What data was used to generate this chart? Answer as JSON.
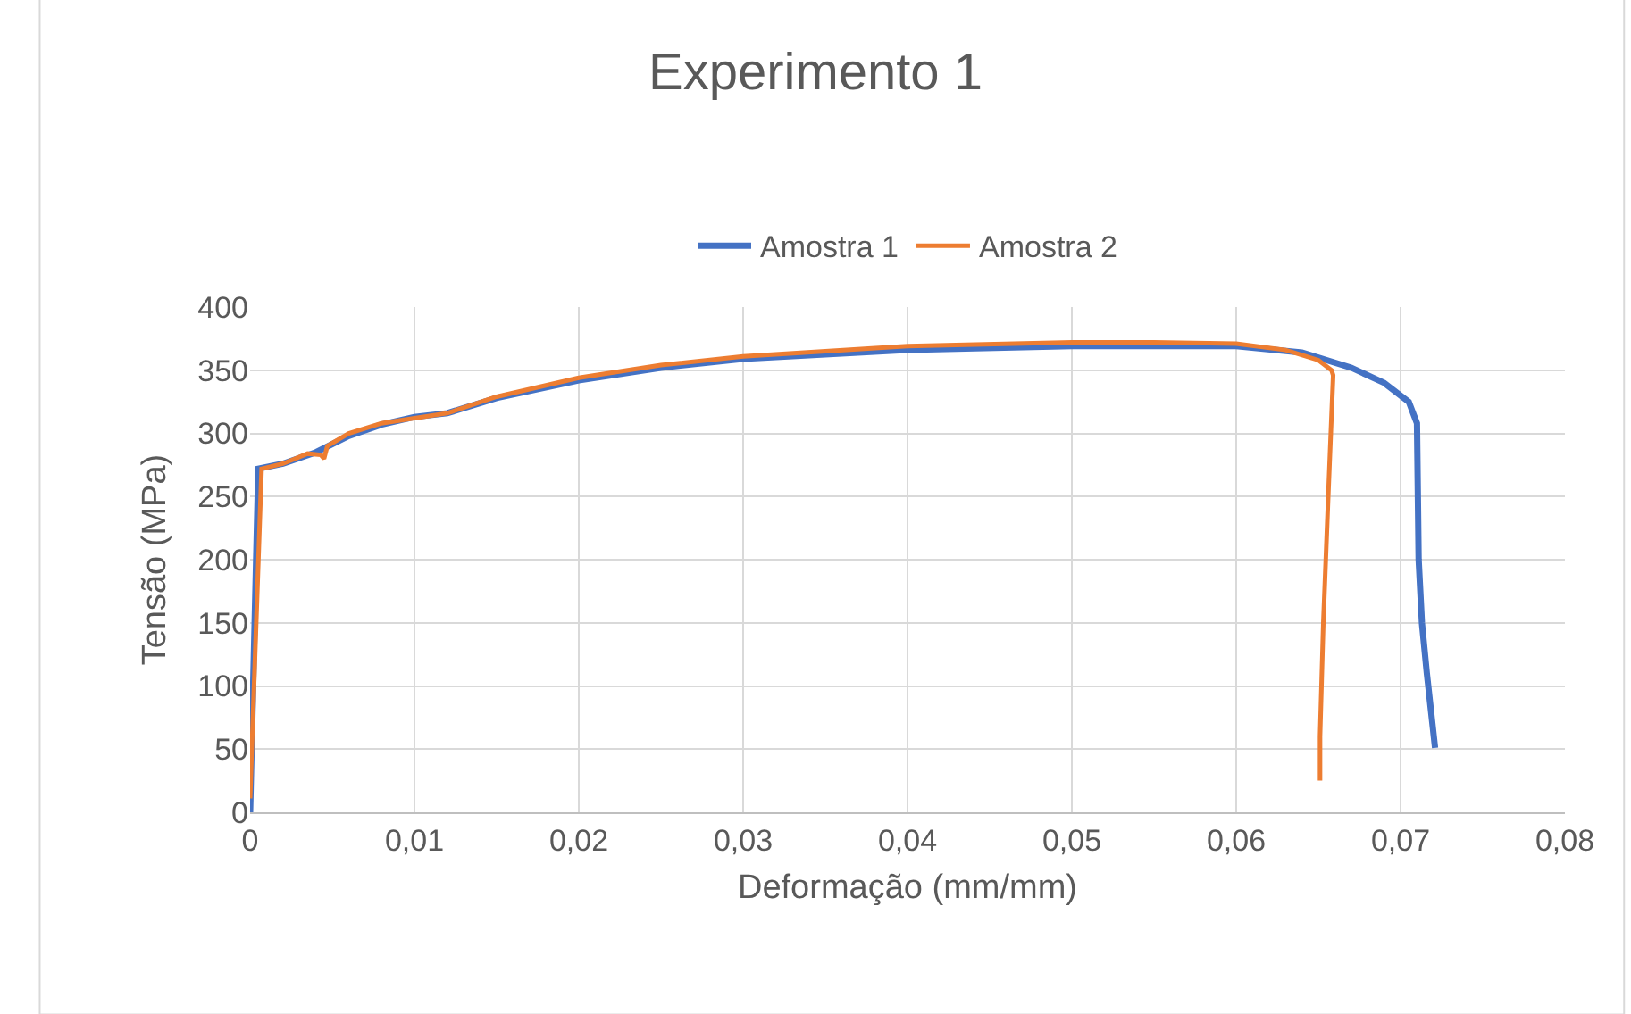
{
  "chart_data": {
    "type": "line",
    "title": "Experimento 1",
    "xlabel": "Deformação (mm/mm)",
    "ylabel": "Tensão (MPa)",
    "xlim": [
      0,
      0.08
    ],
    "xticks": [
      {
        "value": 0,
        "label": "0"
      },
      {
        "value": 0.01,
        "label": "0,01"
      },
      {
        "value": 0.02,
        "label": "0,02"
      },
      {
        "value": 0.03,
        "label": "0,03"
      },
      {
        "value": 0.04,
        "label": "0,04"
      },
      {
        "value": 0.05,
        "label": "0,05"
      },
      {
        "value": 0.06,
        "label": "0,06"
      },
      {
        "value": 0.07,
        "label": "0,07"
      },
      {
        "value": 0.08,
        "label": "0,08"
      }
    ],
    "ylim": [
      0,
      400
    ],
    "yticks": [
      0,
      50,
      100,
      150,
      200,
      250,
      300,
      350,
      400
    ],
    "grid": true,
    "legend": "top",
    "marker": "none",
    "line_style": "solid",
    "series": [
      {
        "name": "Amostra 1",
        "color": "#4472c4",
        "x": [
          0,
          0.0005,
          0.002,
          0.004,
          0.006,
          0.008,
          0.01,
          0.012,
          0.015,
          0.02,
          0.025,
          0.03,
          0.04,
          0.05,
          0.06,
          0.064,
          0.067,
          0.069,
          0.0705,
          0.071,
          0.0711,
          0.0713,
          0.0716,
          0.0721
        ],
        "values": [
          0,
          272,
          276,
          285,
          298,
          307,
          313,
          316,
          328,
          342,
          352,
          359,
          366,
          369,
          369,
          364,
          352,
          340,
          325,
          308,
          200,
          150,
          110,
          51
        ]
      },
      {
        "name": "Amostra 2",
        "color": "#ed7d31",
        "x": [
          0,
          0.0007,
          0.002,
          0.0035,
          0.0043,
          0.0045,
          0.0047,
          0.006,
          0.008,
          0.01,
          0.012,
          0.015,
          0.02,
          0.025,
          0.03,
          0.04,
          0.05,
          0.055,
          0.06,
          0.063,
          0.065,
          0.0658,
          0.0659,
          0.0656,
          0.0653,
          0.0651,
          0.0651
        ],
        "values": [
          11,
          272,
          276,
          284,
          283,
          280,
          290,
          300,
          308,
          312,
          316,
          329,
          344,
          354,
          361,
          369,
          372,
          372,
          371,
          366,
          358,
          350,
          346,
          250,
          150,
          60,
          25
        ]
      }
    ]
  }
}
